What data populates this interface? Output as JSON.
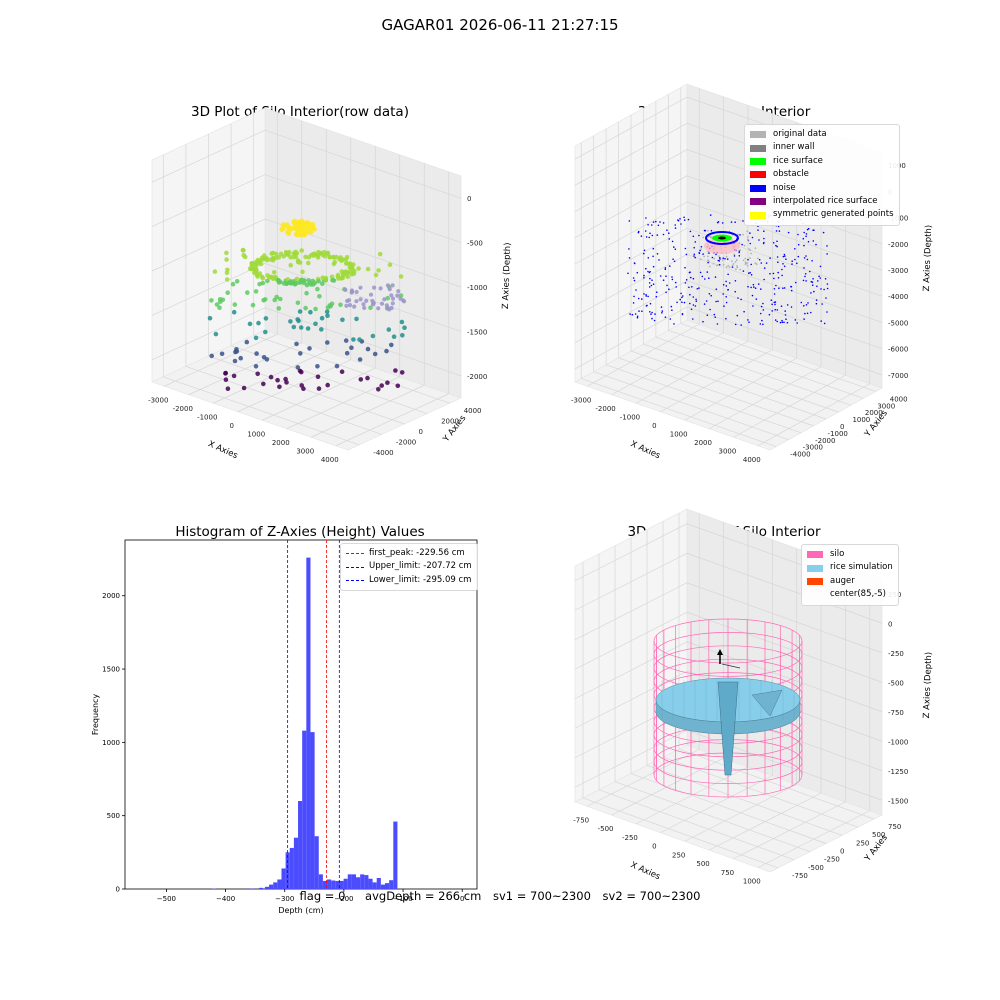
{
  "figure": {
    "title": "GAGAR01 2026-06-11 21:27:15"
  },
  "footer": {
    "flag": "flag = 0",
    "avg_depth": "avgDepth = 266 cm",
    "sv1": "sv1 = 700~2300",
    "sv2": "sv2 = 700~2300"
  },
  "colors": {
    "original data": "#b3b3b3",
    "inner wall": "#808080",
    "rice surface": "#00ff00",
    "obstacle": "#ff0000",
    "noise": "#0000ff",
    "interpolated rice surface": "#800080",
    "symmetric generated points": "#ffff00",
    "silo": "#ff69b4",
    "rice simulation": "#87ceeb",
    "auger": "#ff4500",
    "hist_bar": "#4c4cff"
  },
  "chart_data": [
    {
      "type": "scatter",
      "title": "3D Plot of Silo Interior(row data)",
      "xlabel": "X Axies",
      "ylabel": "Y Axies",
      "zlabel": "Z Axies (Depth)",
      "x_ticks": [
        "-3000",
        "-2000",
        "-1000",
        "0",
        "1000",
        "2000",
        "3000",
        "4000"
      ],
      "y_ticks": [
        "-4000",
        "-2000",
        "0",
        "2000",
        "4000"
      ],
      "z_ticks": [
        "0",
        "-500",
        "-1000",
        "-1500",
        "-2000"
      ],
      "grid": true
    },
    {
      "type": "scatter",
      "title": "3D classify of Silo Interior",
      "xlabel": "X Axies",
      "ylabel": "Y Axies",
      "zlabel": "Z Axies (Depth)",
      "x_ticks": [
        "-3000",
        "-2000",
        "-1000",
        "0",
        "1000",
        "2000",
        "3000",
        "4000"
      ],
      "y_ticks": [
        "-4000",
        "-3000",
        "-2000",
        "-1000",
        "0",
        "1000",
        "2000",
        "3000",
        "4000"
      ],
      "z_ticks": [
        "1000",
        "0",
        "-1000",
        "-2000",
        "-3000",
        "-4000",
        "-5000",
        "-6000",
        "-7000"
      ],
      "legend": [
        "original data",
        "inner wall",
        "rice surface",
        "obstacle",
        "noise",
        "interpolated rice surface",
        "symmetric generated points"
      ],
      "legend_position": "top-right",
      "grid": true
    },
    {
      "type": "bar",
      "title": "Histogram of Z-Axies (Height) Values",
      "xlabel": "Depth (cm)",
      "ylabel": "Frequency",
      "xlim": [
        -570,
        25
      ],
      "ylim": [
        0,
        2380
      ],
      "x_ticks": [
        -500,
        -400,
        -300,
        -200,
        -100,
        0
      ],
      "y_ticks": [
        0,
        500,
        1000,
        1500,
        2000
      ],
      "bin_width": 7,
      "bins": [
        {
          "x": -420,
          "value": 3
        },
        {
          "x": -355,
          "value": 4
        },
        {
          "x": -340,
          "value": 8
        },
        {
          "x": -330,
          "value": 15
        },
        {
          "x": -323,
          "value": 30
        },
        {
          "x": -316,
          "value": 45
        },
        {
          "x": -309,
          "value": 65
        },
        {
          "x": -302,
          "value": 140
        },
        {
          "x": -295,
          "value": 250
        },
        {
          "x": -288,
          "value": 280
        },
        {
          "x": -281,
          "value": 350
        },
        {
          "x": -274,
          "value": 600
        },
        {
          "x": -267,
          "value": 1080
        },
        {
          "x": -260,
          "value": 2260
        },
        {
          "x": -253,
          "value": 1070
        },
        {
          "x": -246,
          "value": 360
        },
        {
          "x": -239,
          "value": 100
        },
        {
          "x": -232,
          "value": 55
        },
        {
          "x": -225,
          "value": 65
        },
        {
          "x": -218,
          "value": 58
        },
        {
          "x": -211,
          "value": 55
        },
        {
          "x": -204,
          "value": 55
        },
        {
          "x": -197,
          "value": 70
        },
        {
          "x": -190,
          "value": 100
        },
        {
          "x": -183,
          "value": 100
        },
        {
          "x": -176,
          "value": 80
        },
        {
          "x": -169,
          "value": 100
        },
        {
          "x": -162,
          "value": 95
        },
        {
          "x": -155,
          "value": 70
        },
        {
          "x": -148,
          "value": 45
        },
        {
          "x": -141,
          "value": 75
        },
        {
          "x": -134,
          "value": 30
        },
        {
          "x": -127,
          "value": 40
        },
        {
          "x": -120,
          "value": 60
        },
        {
          "x": -113,
          "value": 460
        }
      ],
      "vlines": [
        {
          "label": "first_peak: -229.56 cm",
          "x": -229.56,
          "color": "#ff0000"
        },
        {
          "label": "Upper_limit: -207.72 cm",
          "x": -207.72,
          "color": "#0000ff"
        },
        {
          "label": "Lower_limit: -295.09 cm",
          "x": -295.09,
          "color": "#0000ff"
        }
      ],
      "legend_position": "top-right"
    },
    {
      "type": "scatter",
      "title": "3D simulation of Silo Interior",
      "xlabel": "X Axies",
      "ylabel": "Y Axies",
      "zlabel": "Z Axies (Depth)",
      "x_ticks": [
        "-750",
        "-500",
        "-250",
        "0",
        "250",
        "500",
        "750",
        "1000"
      ],
      "y_ticks": [
        "-750",
        "-500",
        "-250",
        "0",
        "250",
        "500",
        "750"
      ],
      "z_ticks": [
        "250",
        "0",
        "-250",
        "-500",
        "-750",
        "-1000",
        "-1250",
        "-1500"
      ],
      "legend": [
        "silo",
        "rice simulation",
        "auger",
        "center(85,-5)"
      ],
      "legend_position": "top-right",
      "grid": true
    }
  ]
}
